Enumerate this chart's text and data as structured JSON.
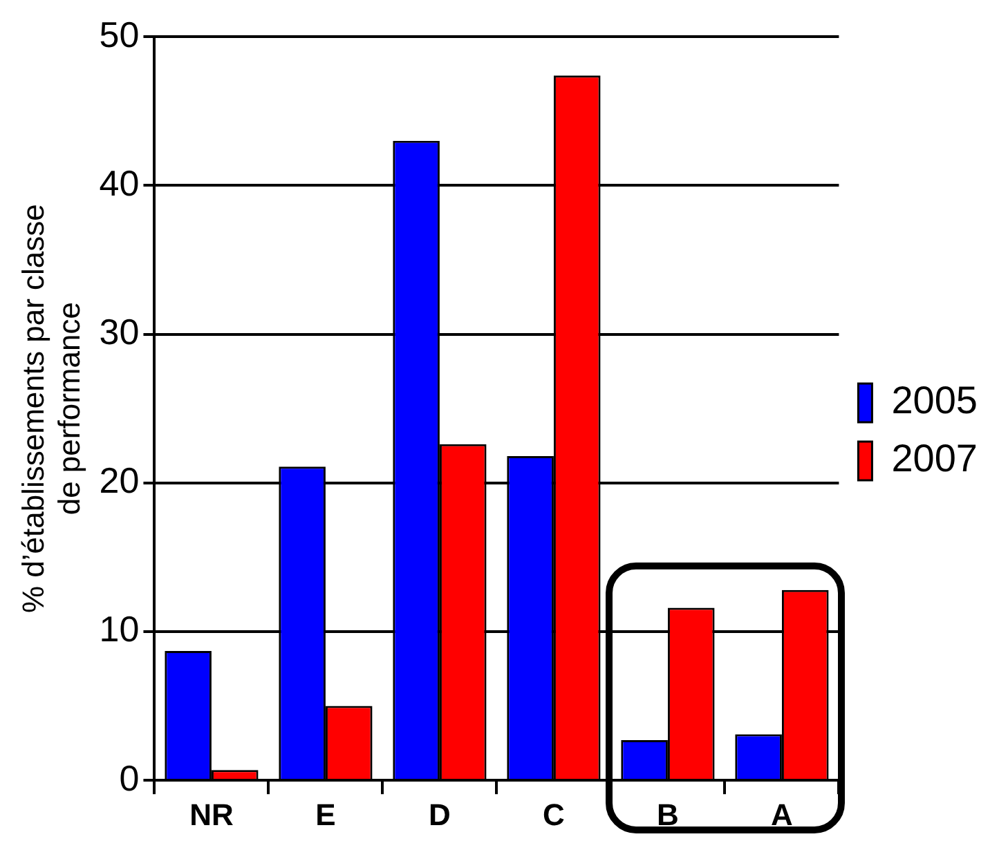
{
  "chart_data": {
    "type": "bar",
    "ylabel": "% d’établissements par classe\nde performance",
    "categories": [
      "NR",
      "E",
      "D",
      "C",
      "B",
      "A"
    ],
    "series": [
      {
        "name": "2005",
        "color": "#0000ff",
        "values": [
          8.7,
          21.1,
          43.0,
          21.8,
          2.7,
          3.1
        ]
      },
      {
        "name": "2007",
        "color": "#ff0000",
        "values": [
          0.7,
          5.0,
          22.6,
          47.4,
          11.6,
          12.8
        ]
      }
    ],
    "ylim": [
      0,
      50
    ],
    "yticks": [
      0,
      10,
      20,
      30,
      40,
      50
    ],
    "grid": "y",
    "legend": "right"
  }
}
